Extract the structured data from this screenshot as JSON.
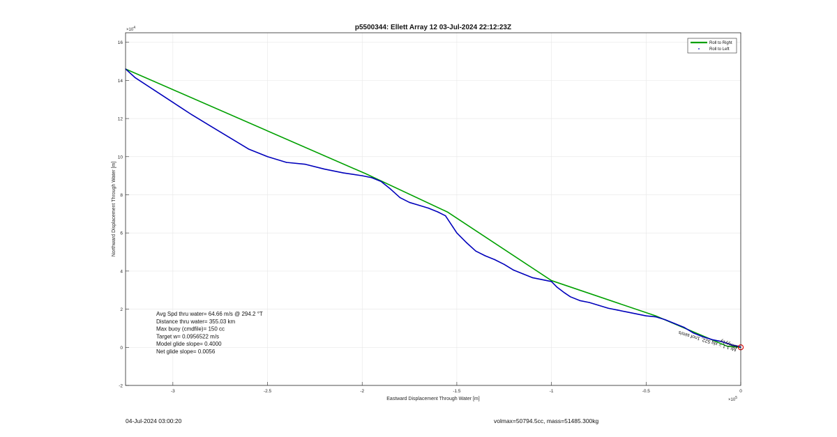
{
  "chart_data": {
    "type": "line",
    "title": "p5500344: Ellett Array 12 03-Jul-2024 22:12:23Z",
    "xlabel": "Eastward Displacement Through Water [m]",
    "ylabel": "Northward Displacement Through Water [m]",
    "x_exponent": "×10^5",
    "y_exponent": "×10^4",
    "xlim": [
      -3.25,
      0
    ],
    "ylim": [
      -2,
      16.5
    ],
    "xticks": [
      -3,
      -2.5,
      -2,
      -1.5,
      -1,
      -0.5,
      0
    ],
    "xtick_labels": [
      "-3",
      "-2.5",
      "-2",
      "-1.5",
      "-1",
      "-0.5",
      "0"
    ],
    "yticks": [
      -2,
      0,
      2,
      4,
      6,
      8,
      10,
      12,
      14,
      16
    ],
    "ytick_labels": [
      "-2",
      "0",
      "2",
      "4",
      "6",
      "8",
      "10",
      "12",
      "14",
      "16"
    ],
    "grid": true,
    "legend_position": "top-right",
    "colors": {
      "green": "#00a000",
      "blue": "#0000bb",
      "marker": "#dd0000",
      "axis": "#262626",
      "grid": "#e6e6e6"
    },
    "series": [
      {
        "name": "Roll to Right",
        "style": "line",
        "color": "#00a000",
        "x": [
          -3.25,
          -1.98,
          -1.55,
          -1.0,
          -0.45,
          -0.07,
          0.0
        ],
        "y": [
          14.6,
          9.1,
          7.1,
          3.5,
          1.65,
          0.05,
          0.0
        ]
      },
      {
        "name": "Roll to Left",
        "style": "point",
        "color": "#0000bb",
        "x": [
          -3.25,
          -3.2,
          -3.1,
          -3.0,
          -2.9,
          -2.8,
          -2.7,
          -2.6,
          -2.5,
          -2.4,
          -2.3,
          -2.2,
          -2.1,
          -2.0,
          -1.95,
          -1.9,
          -1.85,
          -1.8,
          -1.75,
          -1.7,
          -1.65,
          -1.6,
          -1.56,
          -1.52,
          -1.5,
          -1.45,
          -1.4,
          -1.35,
          -1.3,
          -1.25,
          -1.2,
          -1.15,
          -1.1,
          -1.05,
          -1.0,
          -0.97,
          -0.93,
          -0.9,
          -0.85,
          -0.8,
          -0.75,
          -0.7,
          -0.65,
          -0.6,
          -0.55,
          -0.5,
          -0.45,
          -0.4,
          -0.35,
          -0.3,
          -0.25,
          -0.2,
          -0.15,
          -0.1,
          -0.07,
          -0.04,
          -0.01,
          0.0
        ],
        "y": [
          14.6,
          14.15,
          13.5,
          12.85,
          12.2,
          11.6,
          11.0,
          10.4,
          10.0,
          9.7,
          9.6,
          9.35,
          9.15,
          9.0,
          8.9,
          8.7,
          8.3,
          7.85,
          7.6,
          7.45,
          7.3,
          7.1,
          6.9,
          6.3,
          6.0,
          5.5,
          5.05,
          4.8,
          4.6,
          4.35,
          4.05,
          3.85,
          3.65,
          3.55,
          3.45,
          3.15,
          2.85,
          2.65,
          2.45,
          2.35,
          2.2,
          2.05,
          1.95,
          1.85,
          1.75,
          1.65,
          1.6,
          1.45,
          1.25,
          1.05,
          0.75,
          0.55,
          0.4,
          0.3,
          0.2,
          0.1,
          0.05,
          0.0
        ]
      }
    ],
    "marker": {
      "x": 0.0,
      "y": 0.0,
      "shape": "circle"
    },
    "annotations": [
      {
        "text": "Avg Spd thru water= 64.66 m/s @ 294.2 °T"
      },
      {
        "text": "Distance thru water= 355.03 km"
      },
      {
        "text": "Max buoy (cmdfile)= 150 cc"
      },
      {
        "text": "Target w= 0.0956522 m/s"
      },
      {
        "text": "Model glide slope= 0.4000"
      },
      {
        "text": "Net glide slope= 0.0056"
      }
    ],
    "path_label": "Mr 1.1 = xlq 522, 1nof sim/s",
    "path_label_overlap": "Mmyy1y"
  },
  "footer": {
    "date": "04-Jul-2024 03:00:20",
    "volmax": "volmax=50794.5cc, mass=51485.300kg"
  }
}
